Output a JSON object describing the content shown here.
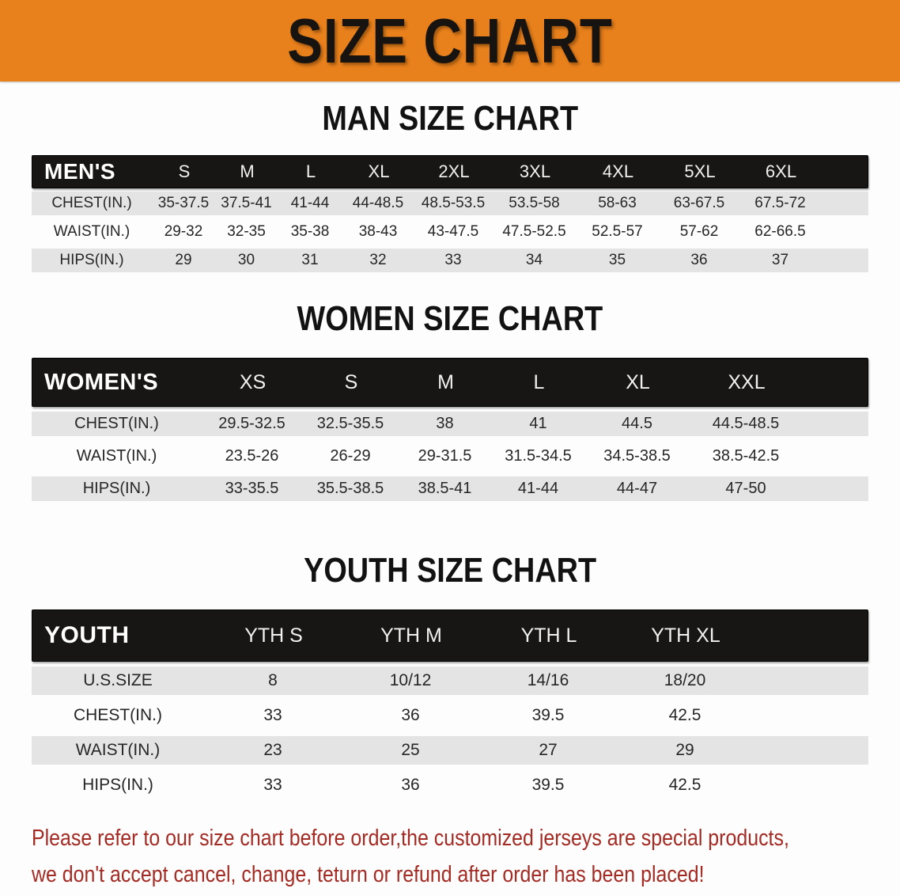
{
  "banner": {
    "title": "SIZE CHART",
    "bg_color": "#e8801c",
    "text_color": "#161310"
  },
  "colors": {
    "table_header_bg": "#181614",
    "row_shade": "#e4e4e4",
    "disclaimer_red": "#a42b23"
  },
  "sections": [
    {
      "heading": "MAN SIZE CHART",
      "table": {
        "header_label": "MEN'S",
        "columns": [
          "S",
          "M",
          "L",
          "XL",
          "2XL",
          "3XL",
          "4XL",
          "5XL",
          "6XL"
        ],
        "rows": [
          {
            "label": "CHEST(IN.)",
            "values": [
              "35-37.5",
              "37.5-41",
              "41-44",
              "44-48.5",
              "48.5-53.5",
              "53.5-58",
              "58-63",
              "63-67.5",
              "67.5-72"
            ]
          },
          {
            "label": "WAIST(IN.)",
            "values": [
              "29-32",
              "32-35",
              "35-38",
              "38-43",
              "43-47.5",
              "47.5-52.5",
              "52.5-57",
              "57-62",
              "62-66.5"
            ]
          },
          {
            "label": "HIPS(IN.)",
            "values": [
              "29",
              "30",
              "31",
              "32",
              "33",
              "34",
              "35",
              "36",
              "37"
            ]
          }
        ]
      }
    },
    {
      "heading": "WOMEN SIZE CHART",
      "table": {
        "header_label": "WOMEN'S",
        "columns": [
          "XS",
          "S",
          "M",
          "L",
          "XL",
          "XXL"
        ],
        "rows": [
          {
            "label": "CHEST(IN.)",
            "values": [
              "29.5-32.5",
              "32.5-35.5",
              "38",
              "41",
              "44.5",
              "44.5-48.5"
            ]
          },
          {
            "label": "WAIST(IN.)",
            "values": [
              "23.5-26",
              "26-29",
              "29-31.5",
              "31.5-34.5",
              "34.5-38.5",
              "38.5-42.5"
            ]
          },
          {
            "label": "HIPS(IN.)",
            "values": [
              "33-35.5",
              "35.5-38.5",
              "38.5-41",
              "41-44",
              "44-47",
              "47-50"
            ]
          }
        ]
      }
    },
    {
      "heading": "YOUTH SIZE CHART",
      "table": {
        "header_label": "YOUTH",
        "columns": [
          "YTH S",
          "YTH M",
          "YTH L",
          "YTH XL"
        ],
        "rows": [
          {
            "label": "U.S.SIZE",
            "values": [
              "8",
              "10/12",
              "14/16",
              "18/20"
            ]
          },
          {
            "label": "CHEST(IN.)",
            "values": [
              "33",
              "36",
              "39.5",
              "42.5"
            ]
          },
          {
            "label": "WAIST(IN.)",
            "values": [
              "23",
              "25",
              "27",
              "29"
            ]
          },
          {
            "label": "HIPS(IN.)",
            "values": [
              "33",
              "36",
              "39.5",
              "42.5"
            ]
          }
        ]
      }
    }
  ],
  "disclaimer": {
    "line1": "Please refer to our size chart before order,the customized jerseys are special products,",
    "line2": "we don't accept cancel, change, teturn or refund after order has been placed!"
  }
}
